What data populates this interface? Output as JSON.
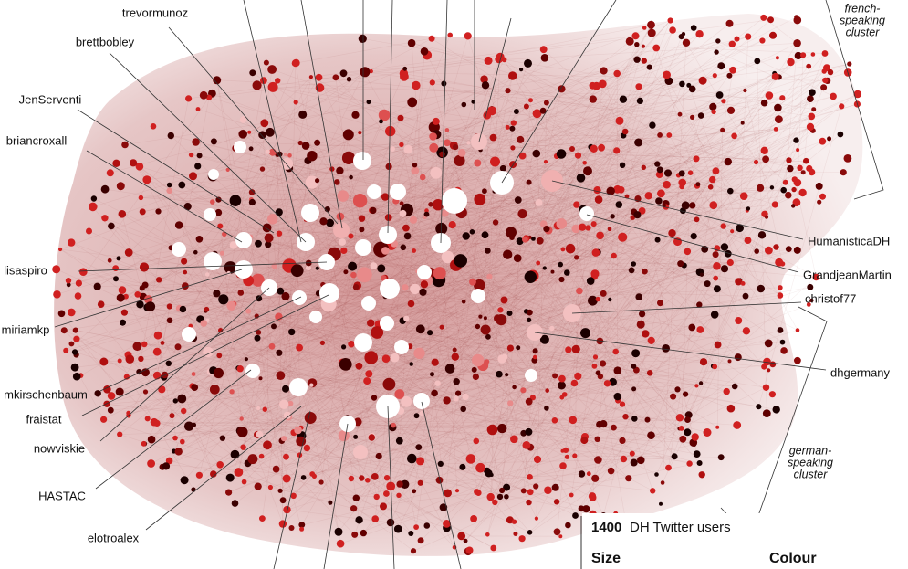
{
  "labels": {
    "left": [
      "trevormunoz",
      "brettbobley",
      "JenServenti",
      "briancroxall",
      "lisaspiro",
      "miriamkp",
      "mkirschenbaum",
      "fraistat",
      "nowviskie",
      "HASTAC",
      "elotroalex"
    ],
    "right": [
      "HumanisticaDH",
      "GrandjeanMartin",
      "christof77",
      "dhgermany"
    ]
  },
  "annotations": [
    {
      "lines": [
        "french-",
        "speaking",
        "cluster"
      ]
    },
    {
      "lines": [
        "german-",
        "speaking",
        "cluster"
      ]
    }
  ],
  "legend": {
    "count": "1400",
    "count_text": "DH Twitter users",
    "size_heading": "Size",
    "colour_heading": "Colour"
  }
}
